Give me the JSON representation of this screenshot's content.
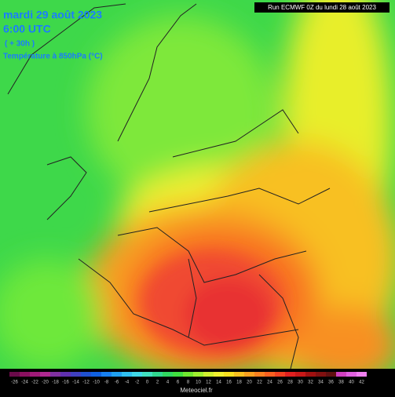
{
  "header": {
    "date": "mardi 29 août 2023",
    "time": "6:00 UTC",
    "lead": "( + 30h )",
    "field": "Température à 850hPa (°C)",
    "run": "Run ECMWF 0Z du lundi 28 août 2023"
  },
  "legend": {
    "labels": [
      -26,
      -24,
      -22,
      -20,
      -18,
      -16,
      -14,
      -12,
      -10,
      -8,
      -6,
      -4,
      -2,
      0,
      2,
      4,
      6,
      8,
      10,
      12,
      14,
      16,
      18,
      20,
      22,
      24,
      26,
      28,
      30,
      32,
      34,
      36,
      38,
      40,
      42
    ],
    "colors": [
      "#6a0a4a",
      "#8a1060",
      "#a01a78",
      "#b02890",
      "#8030a0",
      "#6030b0",
      "#4040c0",
      "#2050d0",
      "#1060e0",
      "#1880f0",
      "#20a0f0",
      "#30c0f0",
      "#40d8e8",
      "#40e0c0",
      "#30d890",
      "#30d860",
      "#40e040",
      "#70e830",
      "#a0f030",
      "#d0f030",
      "#f0f030",
      "#f8e020",
      "#f8c020",
      "#f8a020",
      "#f88020",
      "#f86020",
      "#f04020",
      "#e02020",
      "#c81818",
      "#a01010",
      "#801010",
      "#601010",
      "#d040c0",
      "#e060e0",
      "#f080f0"
    ],
    "credit": "Meteociel.fr"
  }
}
